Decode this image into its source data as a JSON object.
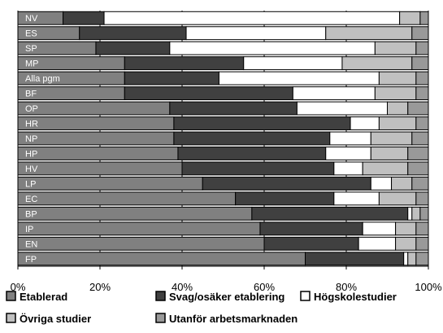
{
  "chart_data": {
    "type": "bar",
    "orientation": "horizontal",
    "stacked": "percent",
    "categories": [
      "NV",
      "ES",
      "SP",
      "MP",
      "Alla pgm",
      "BF",
      "OP",
      "HR",
      "NP",
      "HP",
      "HV",
      "LP",
      "EC",
      "BP",
      "IP",
      "EN",
      "FP"
    ],
    "series": [
      {
        "name": "Etablerad",
        "color": "#808080",
        "values": [
          11,
          15,
          19,
          26,
          26,
          26,
          37,
          38,
          38,
          39,
          40,
          45,
          53,
          57,
          59,
          60,
          70
        ]
      },
      {
        "name": "Svag/osäker etablering",
        "color": "#404040",
        "values": [
          10,
          26,
          18,
          29,
          23,
          41,
          31,
          43,
          38,
          36,
          37,
          41,
          24,
          38,
          25,
          23,
          24
        ]
      },
      {
        "name": "Högskolestudier",
        "color": "#ffffff",
        "values": [
          72,
          34,
          50,
          24,
          39,
          20,
          22,
          7,
          10,
          11,
          7,
          5,
          11,
          1,
          8,
          9,
          1
        ]
      },
      {
        "name": "Övriga studier",
        "color": "#c0c0c0",
        "values": [
          5,
          21,
          10,
          17,
          9,
          10,
          5,
          9,
          10,
          9,
          11,
          5,
          9,
          2,
          5,
          5,
          2
        ]
      },
      {
        "name": "Utanför arbetsmarknaden",
        "color": "#999999",
        "values": [
          2,
          4,
          3,
          4,
          3,
          3,
          5,
          3,
          4,
          5,
          5,
          4,
          3,
          2,
          3,
          3,
          3
        ]
      }
    ],
    "xlim": [
      0,
      100
    ],
    "xticks": [
      "0%",
      "20%",
      "40%",
      "60%",
      "80%",
      "100%"
    ],
    "grid": true,
    "legend_position": "bottom"
  }
}
